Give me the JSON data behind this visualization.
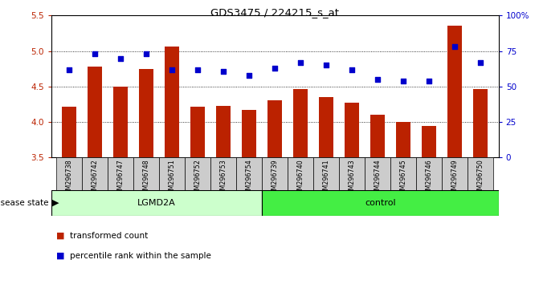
{
  "title": "GDS3475 / 224215_s_at",
  "samples": [
    "GSM296738",
    "GSM296742",
    "GSM296747",
    "GSM296748",
    "GSM296751",
    "GSM296752",
    "GSM296753",
    "GSM296754",
    "GSM296739",
    "GSM296740",
    "GSM296741",
    "GSM296743",
    "GSM296744",
    "GSM296745",
    "GSM296746",
    "GSM296749",
    "GSM296750"
  ],
  "bar_values": [
    4.22,
    4.78,
    4.5,
    4.75,
    5.07,
    4.22,
    4.23,
    4.17,
    4.31,
    4.47,
    4.35,
    4.27,
    4.1,
    4.0,
    3.95,
    5.36,
    4.47
  ],
  "dot_values": [
    62,
    73,
    70,
    73,
    62,
    62,
    61,
    58,
    63,
    67,
    65,
    62,
    55,
    54,
    54,
    78,
    67
  ],
  "bar_color": "#bb2200",
  "dot_color": "#0000cc",
  "ylim_left": [
    3.5,
    5.5
  ],
  "ylim_right": [
    0,
    100
  ],
  "yticks_left": [
    3.5,
    4.0,
    4.5,
    5.0,
    5.5
  ],
  "yticks_right": [
    0,
    25,
    50,
    75,
    100
  ],
  "ytick_labels_right": [
    "0",
    "25",
    "50",
    "75",
    "100%"
  ],
  "grid_values": [
    4.0,
    4.5,
    5.0
  ],
  "lgmd2a_count": 8,
  "lgmd2a_label": "LGMD2A",
  "control_label": "control",
  "disease_state_label": "disease state",
  "legend_bar_label": "transformed count",
  "legend_dot_label": "percentile rank within the sample",
  "bar_bottom": 3.5,
  "bgcolor_lgmd": "#ccffcc",
  "bgcolor_control": "#44ee44",
  "cell_color": "#cccccc",
  "bar_width": 0.55
}
